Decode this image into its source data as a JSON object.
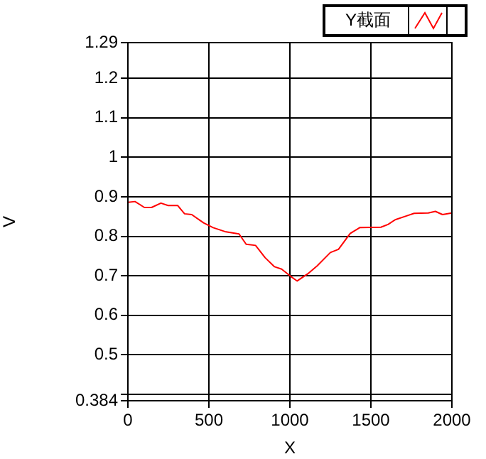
{
  "chart_data": {
    "type": "line",
    "xlabel": "X",
    "ylabel": "V",
    "xlim": [
      0,
      2000
    ],
    "xticks": [
      0,
      500,
      1000,
      1500,
      2000
    ],
    "ylim": [
      0.384,
      1.29
    ],
    "yticks": [
      0.384,
      {
        "value": 0.4,
        "label": null
      },
      0.5,
      0.6,
      0.7,
      0.8,
      0.9,
      1,
      1.1,
      1.2,
      1.29
    ],
    "grid": true,
    "legend": "top right",
    "marker": "none",
    "series": [
      {
        "name": "Y截面",
        "color": "#ff0000",
        "x": [
          0,
          44,
          102,
          146,
          204,
          248,
          307,
          350,
          394,
          467,
          526,
          599,
          686,
          730,
          788,
          847,
          905,
          949,
          1007,
          1045,
          1110,
          1168,
          1250,
          1300,
          1372,
          1431,
          1562,
          1606,
          1650,
          1723,
          1767,
          1854,
          1898,
          1942,
          2000
        ],
        "values": [
          0.886,
          0.888,
          0.873,
          0.873,
          0.884,
          0.878,
          0.878,
          0.857,
          0.855,
          0.834,
          0.822,
          0.812,
          0.806,
          0.78,
          0.777,
          0.746,
          0.723,
          0.717,
          0.698,
          0.687,
          0.705,
          0.725,
          0.759,
          0.767,
          0.807,
          0.822,
          0.823,
          0.83,
          0.842,
          0.852,
          0.858,
          0.859,
          0.863,
          0.855,
          0.859
        ]
      }
    ]
  }
}
